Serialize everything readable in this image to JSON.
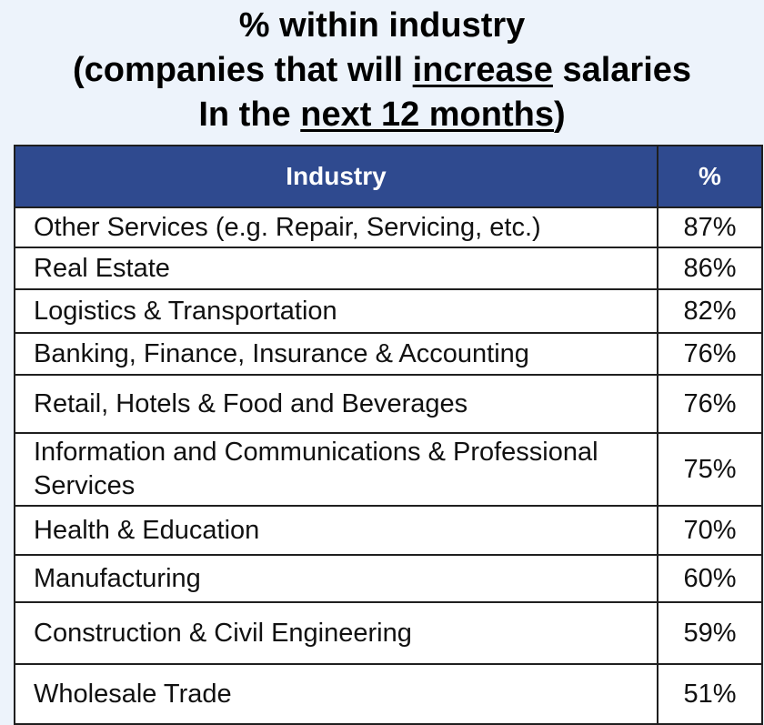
{
  "title": {
    "line1": "% within industry",
    "line2_pre": "(companies that will ",
    "line2_u": "increase",
    "line2_post": " salaries",
    "line3_pre": "In the ",
    "line3_u": "next 12 months",
    "line3_post": ")"
  },
  "colors": {
    "header_bg": "#2f4a8f",
    "header_text": "#ffffff",
    "page_bg": "#edf3fb"
  },
  "chart_data": {
    "type": "table",
    "title": "% within industry (companies that will increase salaries In the next 12 months)",
    "columns": [
      "Industry",
      "%"
    ],
    "rows": [
      {
        "industry": "Other Services (e.g. Repair, Servicing, etc.)",
        "percent": "87%",
        "value": 87
      },
      {
        "industry": "Real Estate",
        "percent": "86%",
        "value": 86
      },
      {
        "industry": "Logistics & Transportation",
        "percent": "82%",
        "value": 82
      },
      {
        "industry": "Banking, Finance, Insurance & Accounting",
        "percent": "76%",
        "value": 76
      },
      {
        "industry": "Retail, Hotels & Food and Beverages",
        "percent": "76%",
        "value": 76
      },
      {
        "industry": "Information and Communications & Professional Services",
        "percent": "75%",
        "value": 75
      },
      {
        "industry": "Health & Education",
        "percent": "70%",
        "value": 70
      },
      {
        "industry": "Manufacturing",
        "percent": "60%",
        "value": 60
      },
      {
        "industry": "Construction & Civil Engineering",
        "percent": "59%",
        "value": 59
      },
      {
        "industry": "Wholesale Trade",
        "percent": "51%",
        "value": 51
      }
    ]
  }
}
